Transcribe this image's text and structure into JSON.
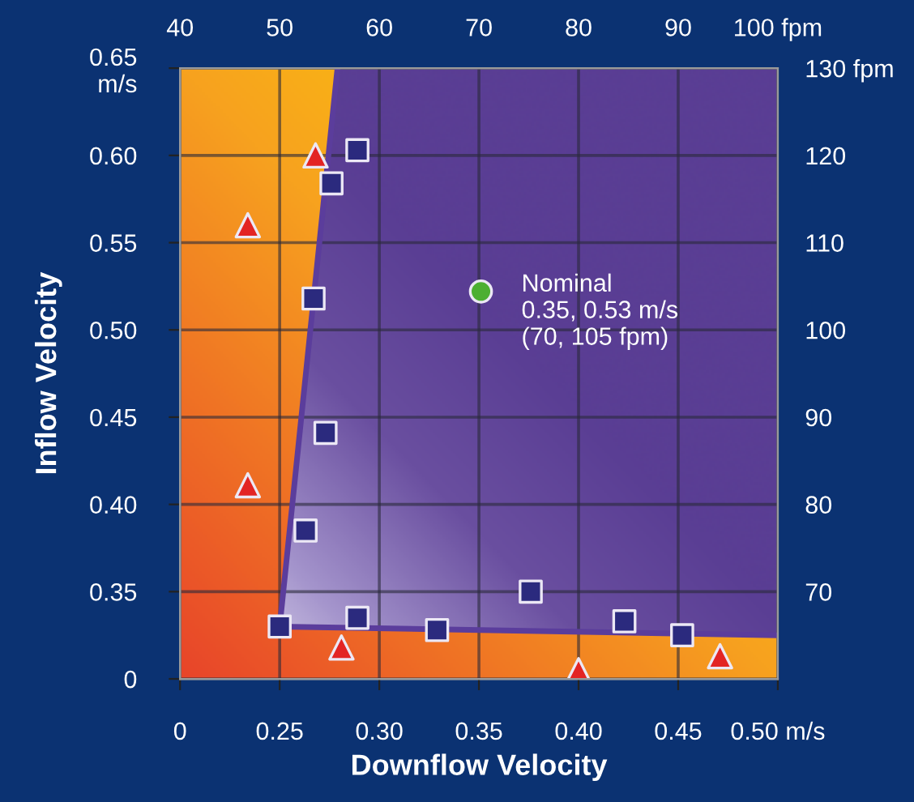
{
  "chart_data": {
    "type": "scatter",
    "xlabel": "Downflow Velocity",
    "ylabel": "Inflow Velocity",
    "xlim": [
      0.2,
      0.5
    ],
    "ylim": [
      0.3,
      0.65
    ],
    "x2lim": [
      40,
      100
    ],
    "y2lim": [
      60,
      130
    ],
    "xticks": [
      {
        "value": 0.2,
        "label": "0"
      },
      {
        "value": 0.25,
        "label": "0.25"
      },
      {
        "value": 0.3,
        "label": "0.30"
      },
      {
        "value": 0.35,
        "label": "0.35"
      },
      {
        "value": 0.4,
        "label": "0.40"
      },
      {
        "value": 0.45,
        "label": "0.45"
      },
      {
        "value": 0.5,
        "label": "0.50 m/s"
      }
    ],
    "yticks": [
      {
        "value": 0.3,
        "label": "0"
      },
      {
        "value": 0.35,
        "label": "0.35"
      },
      {
        "value": 0.4,
        "label": "0.40"
      },
      {
        "value": 0.45,
        "label": "0.45"
      },
      {
        "value": 0.5,
        "label": "0.50"
      },
      {
        "value": 0.55,
        "label": "0.55"
      },
      {
        "value": 0.6,
        "label": "0.60"
      },
      {
        "value": 0.65,
        "label": "0.65\nm/s"
      }
    ],
    "x2ticks": [
      40,
      50,
      60,
      70,
      80,
      90,
      {
        "value": 100,
        "label": "100 fpm"
      }
    ],
    "y2ticks": [
      70,
      80,
      90,
      100,
      110,
      120,
      {
        "value": 130,
        "label": "130 fpm"
      }
    ],
    "grid": true,
    "legend": false,
    "series": [
      {
        "type": "line",
        "color": "#5b3d9c",
        "marker": "none",
        "line_style": "solid",
        "x": [
          0.279,
          0.25,
          0.5
        ],
        "values": [
          0.65,
          0.33,
          0.325
        ]
      },
      {
        "color": "#e32424",
        "marker": "triangle",
        "x": [
          0.268,
          0.234,
          0.234,
          0.281,
          0.4,
          0.471
        ],
        "values": [
          0.6,
          0.56,
          0.411,
          0.318,
          0.305,
          0.313
        ]
      },
      {
        "color": "#2b2a7e",
        "marker": "square",
        "x": [
          0.289,
          0.276,
          0.267,
          0.273,
          0.263,
          0.25,
          0.289,
          0.329,
          0.376,
          0.423,
          0.452
        ],
        "values": [
          0.603,
          0.584,
          0.518,
          0.441,
          0.385,
          0.33,
          0.335,
          0.328,
          0.35,
          0.333,
          0.325
        ]
      },
      {
        "color": "#4caf32",
        "marker": "circle",
        "x": [
          0.351
        ],
        "values": [
          0.522
        ]
      }
    ],
    "annotations": [
      {
        "text": "Nominal\n0.35, 0.53 m/s\n(70, 105 fpm)",
        "x": 0.351,
        "y": 0.522
      }
    ]
  }
}
